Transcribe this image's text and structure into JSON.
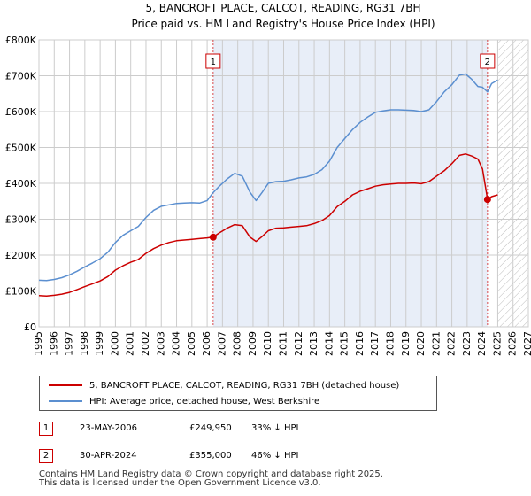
{
  "chart_data": {
    "type": "line",
    "title": "5, BANCROFT PLACE, CALCOT, READING, RG31 7BH",
    "subtitle": "Price paid vs. HM Land Registry's House Price Index (HPI)",
    "xlim": [
      1995,
      2027
    ],
    "ylim": [
      0,
      800000
    ],
    "y_ticks": [
      0,
      100000,
      200000,
      300000,
      400000,
      500000,
      600000,
      700000,
      800000
    ],
    "y_tick_labels": [
      "£0",
      "£100K",
      "£200K",
      "£300K",
      "£400K",
      "£500K",
      "£600K",
      "£700K",
      "£800K"
    ],
    "x_ticks": [
      1995,
      1996,
      1997,
      1998,
      1999,
      2000,
      2001,
      2002,
      2003,
      2004,
      2005,
      2006,
      2007,
      2008,
      2009,
      2010,
      2011,
      2012,
      2013,
      2014,
      2015,
      2016,
      2017,
      2018,
      2019,
      2020,
      2021,
      2022,
      2023,
      2024,
      2025,
      2026,
      2027
    ],
    "x_tick_labels": [
      "1995",
      "1996",
      "1997",
      "1998",
      "1999",
      "2000",
      "2001",
      "2002",
      "2003",
      "2004",
      "2005",
      "2006",
      "2007",
      "2008",
      "2009",
      "2010",
      "2011",
      "2012",
      "2013",
      "2014",
      "2015",
      "2016",
      "2017",
      "2018",
      "2019",
      "2020",
      "2021",
      "2022",
      "2023",
      "2024",
      "2025",
      "2026",
      "2027"
    ],
    "grid": true,
    "shaded_period": [
      2006.39,
      2024.33
    ],
    "hatched_from": 2025.0,
    "series": [
      {
        "name": "5, BANCROFT PLACE, CALCOT, READING, RG31 7BH (detached house)",
        "color": "#cc0000",
        "x": [
          1995.0,
          1995.5,
          1996.0,
          1996.5,
          1997.0,
          1997.5,
          1998.0,
          1998.5,
          1999.0,
          1999.5,
          2000.0,
          2000.5,
          2001.0,
          2001.5,
          2002.0,
          2002.5,
          2003.0,
          2003.5,
          2004.0,
          2004.5,
          2005.0,
          2005.5,
          2006.0,
          2006.39,
          2006.8,
          2007.3,
          2007.8,
          2008.3,
          2008.8,
          2009.2,
          2009.6,
          2010.0,
          2010.5,
          2011.0,
          2011.5,
          2012.0,
          2012.5,
          2013.0,
          2013.5,
          2014.0,
          2014.5,
          2015.0,
          2015.5,
          2016.0,
          2016.5,
          2017.0,
          2017.5,
          2018.0,
          2018.5,
          2019.0,
          2019.5,
          2020.0,
          2020.5,
          2021.0,
          2021.5,
          2022.0,
          2022.5,
          2022.9,
          2023.3,
          2023.7,
          2024.0,
          2024.2,
          2024.33,
          2024.6,
          2025.0
        ],
        "values": [
          87000,
          86000,
          88000,
          91000,
          96000,
          104000,
          112000,
          120000,
          128000,
          140000,
          158000,
          170000,
          180000,
          188000,
          205000,
          218000,
          228000,
          235000,
          240000,
          242000,
          244000,
          246000,
          248000,
          249950,
          262000,
          275000,
          285000,
          282000,
          250000,
          238000,
          252000,
          268000,
          275000,
          276000,
          278000,
          280000,
          282000,
          288000,
          296000,
          310000,
          335000,
          350000,
          368000,
          378000,
          385000,
          392000,
          396000,
          398000,
          400000,
          400000,
          401000,
          399000,
          405000,
          420000,
          435000,
          455000,
          478000,
          482000,
          476000,
          468000,
          440000,
          390000,
          355000,
          363000,
          368000
        ]
      },
      {
        "name": "HPI: Average price, detached house, West Berkshire",
        "color": "#5b8fd0",
        "x": [
          1995.0,
          1995.5,
          1996.0,
          1996.5,
          1997.0,
          1997.5,
          1998.0,
          1998.5,
          1999.0,
          1999.5,
          2000.0,
          2000.5,
          2001.0,
          2001.5,
          2002.0,
          2002.5,
          2003.0,
          2003.5,
          2004.0,
          2004.5,
          2005.0,
          2005.5,
          2006.0,
          2006.39,
          2006.8,
          2007.3,
          2007.8,
          2008.3,
          2008.8,
          2009.2,
          2009.6,
          2010.0,
          2010.5,
          2011.0,
          2011.5,
          2012.0,
          2012.5,
          2013.0,
          2013.5,
          2014.0,
          2014.5,
          2015.0,
          2015.5,
          2016.0,
          2016.5,
          2017.0,
          2017.5,
          2018.0,
          2018.5,
          2019.0,
          2019.5,
          2020.0,
          2020.5,
          2021.0,
          2021.5,
          2022.0,
          2022.5,
          2022.9,
          2023.3,
          2023.7,
          2024.0,
          2024.33,
          2024.6,
          2025.0
        ],
        "values": [
          130000,
          129000,
          132000,
          137000,
          145000,
          155000,
          167000,
          178000,
          190000,
          208000,
          235000,
          255000,
          268000,
          280000,
          305000,
          325000,
          336000,
          340000,
          344000,
          345000,
          346000,
          345000,
          352000,
          374000,
          392000,
          412000,
          428000,
          420000,
          375000,
          352000,
          375000,
          400000,
          405000,
          406000,
          410000,
          415000,
          418000,
          425000,
          438000,
          462000,
          500000,
          525000,
          550000,
          570000,
          585000,
          598000,
          602000,
          605000,
          605000,
          604000,
          603000,
          600000,
          605000,
          628000,
          655000,
          675000,
          702000,
          705000,
          690000,
          670000,
          668000,
          655000,
          678000,
          688000
        ]
      }
    ],
    "markers": [
      {
        "label": "1",
        "x": 2006.39,
        "y": 249950
      },
      {
        "label": "2",
        "x": 2024.33,
        "y": 355000
      }
    ]
  },
  "legend": {
    "series1": "5, BANCROFT PLACE, CALCOT, READING, RG31 7BH (detached house)",
    "series2": "HPI: Average price, detached house, West Berkshire"
  },
  "transactions": [
    {
      "num": "1",
      "date": "23-MAY-2006",
      "price": "£249,950",
      "hpi": "33% ↓ HPI"
    },
    {
      "num": "2",
      "date": "30-APR-2024",
      "price": "£355,000",
      "hpi": "46% ↓ HPI"
    }
  ],
  "footer": {
    "line1": "Contains HM Land Registry data © Crown copyright and database right 2025.",
    "line2": "This data is licensed under the Open Government Licence v3.0."
  },
  "colors": {
    "property": "#cc0000",
    "hpi": "#5b8fd0",
    "shade": "#e8eef8",
    "grid": "#cccccc"
  }
}
